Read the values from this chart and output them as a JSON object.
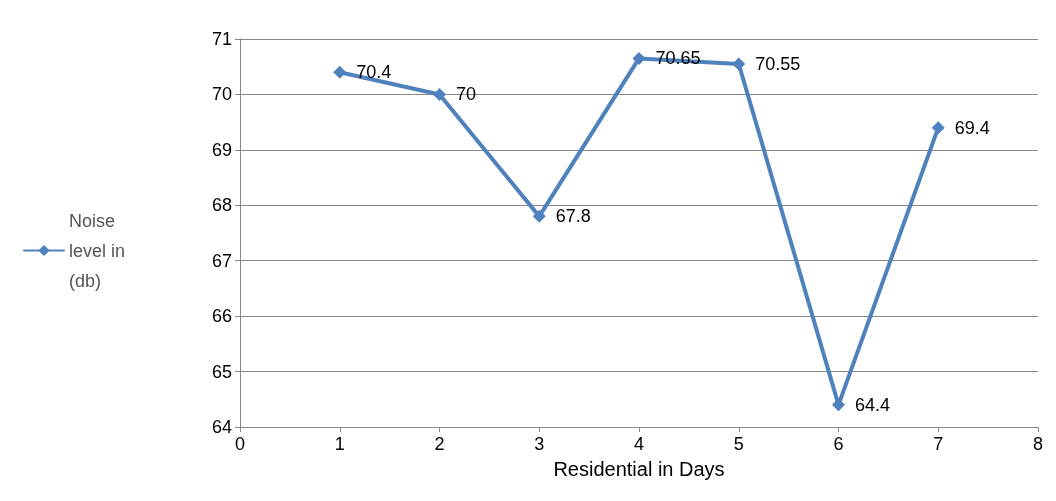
{
  "chart_data": {
    "type": "line",
    "xlabel": "Residential in Days",
    "x": [
      1,
      2,
      3,
      4,
      5,
      6,
      7
    ],
    "series": [
      {
        "name": "Noise level in (db)",
        "color": "#4f81bd",
        "values": [
          70.4,
          70,
          67.8,
          70.65,
          70.55,
          64.4,
          69.4
        ]
      }
    ],
    "xlim": [
      0,
      8
    ],
    "xticks": [
      0,
      1,
      2,
      3,
      4,
      5,
      6,
      7,
      8
    ],
    "ylim": [
      64,
      71
    ],
    "yticks": [
      64,
      65,
      66,
      67,
      68,
      69,
      70,
      71
    ],
    "grid": "y",
    "legend": "left",
    "marker": "diamond",
    "line_style": "solid",
    "data_labels": true
  }
}
